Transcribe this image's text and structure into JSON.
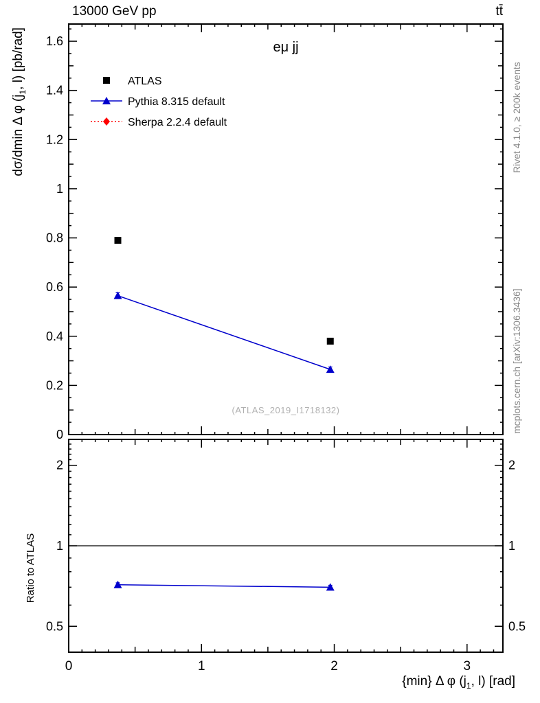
{
  "chart_data": {
    "type": "scatter",
    "title": "eμ jj",
    "top_left": "13000 GeV pp",
    "top_right": "tt̄",
    "watermark": "(ATLAS_2019_I1718132)",
    "right_label_top": "Rivet 4.1.0, ≥ 200k events",
    "right_label_bottom": "mcplots.cern.ch [arXiv:1306.3436]",
    "xlabel_parts": [
      "{min} Δ φ (j",
      "1",
      ", l) [rad]"
    ],
    "ylabel_parts": [
      "dσ/dmin Δ φ (j",
      "1",
      ", l) [pb/rad]"
    ],
    "ratio_ylabel": "Ratio to ATLAS",
    "legend_position": "top-left",
    "grid": false,
    "main": {
      "xlim": [
        0,
        3.27
      ],
      "ylim": [
        0,
        1.67
      ],
      "xticks": [
        0,
        1,
        2,
        3
      ],
      "yticks": [
        0,
        0.2,
        0.4,
        0.6,
        0.8,
        1,
        1.2,
        1.4,
        1.6
      ],
      "series": [
        {
          "name": "ATLAS",
          "marker": "square",
          "color": "#000000",
          "line": false,
          "x": [
            0.37,
            1.97
          ],
          "y": [
            0.79,
            0.38
          ]
        },
        {
          "name": "Pythia 8.315 default",
          "marker": "triangle",
          "color": "#0000cc",
          "line": true,
          "linestyle": "solid",
          "x": [
            0.37,
            1.97
          ],
          "y": [
            0.565,
            0.265
          ],
          "yerr": [
            0.012,
            0.01
          ]
        },
        {
          "name": "Sherpa 2.2.4 default",
          "marker": "diamond",
          "color": "#ff0000",
          "line": true,
          "linestyle": "dotted",
          "x": [],
          "y": []
        }
      ]
    },
    "ratio": {
      "scale": "log",
      "ylim": [
        0.4,
        2.5
      ],
      "yticks": [
        0.5,
        1,
        2
      ],
      "refline": 1,
      "series": [
        {
          "name": "Pythia 8.315 default",
          "marker": "triangle",
          "color": "#0000cc",
          "line": true,
          "linestyle": "solid",
          "x": [
            0.37,
            1.97
          ],
          "y": [
            0.715,
            0.7
          ],
          "yerr": [
            0.012,
            0.012
          ]
        }
      ]
    }
  }
}
